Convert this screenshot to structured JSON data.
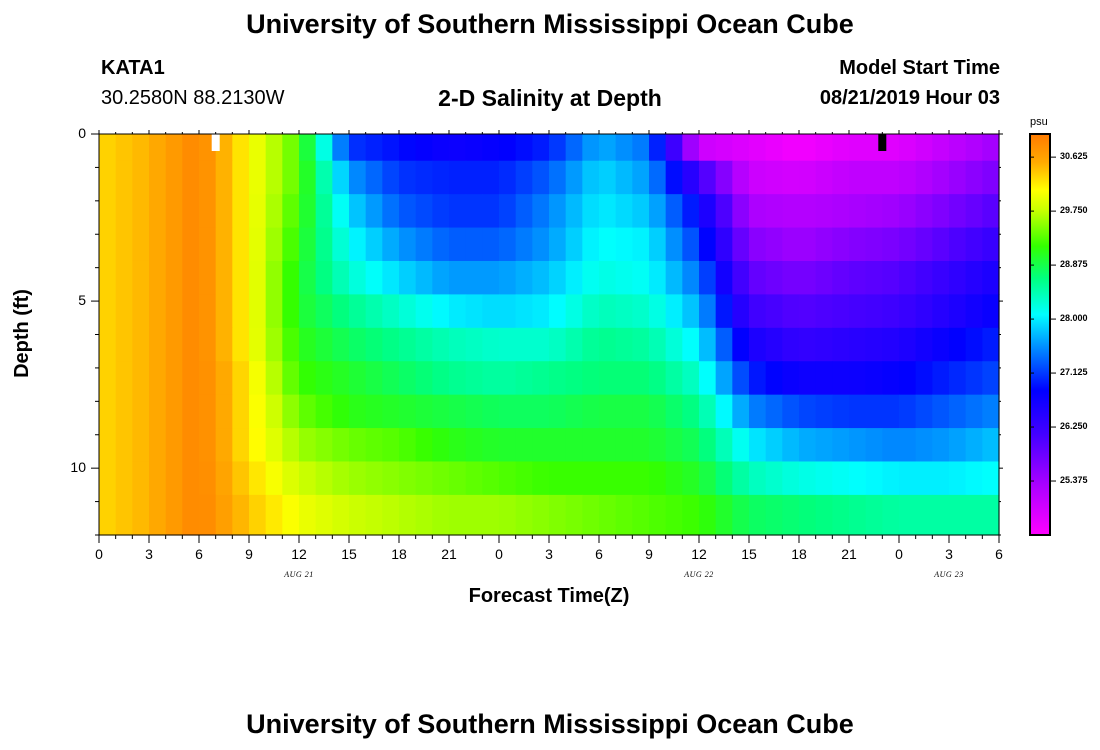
{
  "header": {
    "title": "University of Southern Mississippi Ocean Cube",
    "station": "KATA1",
    "coords": "30.2580N 88.2130W",
    "subtitle": "2-D Salinity at Depth",
    "model_label": "Model Start Time",
    "model_time": "08/21/2019 Hour 03"
  },
  "footer": {
    "title": "University of Southern Mississippi Ocean Cube"
  },
  "chart_data": {
    "type": "heatmap",
    "title": "2-D Salinity at Depth",
    "xlabel": "Forecast Time(Z)",
    "ylabel": "Depth (ft)",
    "x_tick_labels": [
      "0",
      "3",
      "6",
      "9",
      "12",
      "15",
      "18",
      "21",
      "0",
      "3",
      "6",
      "9",
      "12",
      "15",
      "18",
      "21",
      "0",
      "3",
      "6"
    ],
    "x_range_hours": [
      0,
      54
    ],
    "y_tick_labels": [
      "0",
      "5",
      "10"
    ],
    "y_tick_values": [
      0,
      5,
      10
    ],
    "y_range_ft": [
      0,
      12
    ],
    "date_labels": [
      {
        "text": "AUG 21",
        "hour": 12
      },
      {
        "text": "AUG 22",
        "hour": 36
      },
      {
        "text": "AUG 23",
        "hour": 51
      }
    ],
    "colorbar": {
      "unit": "psu",
      "min": 24.5,
      "max": 31.0,
      "labels": [
        "30.625",
        "29.750",
        "28.875",
        "28.000",
        "27.125",
        "26.250",
        "25.375"
      ],
      "label_values": [
        30.625,
        29.75,
        28.875,
        28.0,
        27.125,
        26.25,
        25.375
      ]
    },
    "markers": [
      {
        "hour": 7,
        "color": "#ffffff"
      },
      {
        "hour": 47,
        "color": "#000000"
      }
    ],
    "depth_levels_ft": [
      0.3,
      1.3,
      2.3,
      3.3,
      4.3,
      5.3,
      6.3,
      7.3,
      8.3,
      9.3,
      10.3,
      11.3
    ],
    "time_hours": [
      0,
      3,
      6,
      9,
      12,
      15,
      18,
      21,
      24,
      27,
      30,
      33,
      36,
      39,
      42,
      45,
      48,
      51,
      54
    ],
    "salinity": [
      [
        30.3,
        30.5,
        30.9,
        30.1,
        29.3,
        27.1,
        26.9,
        26.7,
        26.8,
        27.0,
        27.7,
        27.4,
        25.0,
        24.8,
        24.6,
        24.8,
        24.8,
        25.1,
        25.4
      ],
      [
        30.3,
        30.5,
        30.9,
        30.1,
        29.3,
        27.6,
        27.1,
        27.0,
        27.0,
        27.3,
        27.9,
        27.6,
        26.2,
        25.0,
        24.9,
        25.1,
        25.1,
        25.4,
        25.7
      ],
      [
        30.3,
        30.5,
        30.9,
        30.1,
        29.2,
        27.9,
        27.3,
        27.1,
        27.1,
        27.5,
        28.0,
        27.8,
        26.8,
        25.3,
        25.2,
        25.3,
        25.4,
        25.7,
        26.0
      ],
      [
        30.3,
        30.5,
        30.9,
        30.1,
        29.1,
        28.1,
        27.6,
        27.3,
        27.3,
        27.6,
        28.1,
        28.0,
        27.1,
        25.6,
        25.4,
        25.6,
        25.7,
        26.0,
        26.3
      ],
      [
        30.3,
        30.5,
        30.9,
        30.1,
        29.0,
        28.3,
        27.9,
        27.6,
        27.6,
        27.8,
        28.2,
        28.1,
        27.4,
        25.9,
        25.7,
        25.9,
        26.0,
        26.3,
        26.6
      ],
      [
        30.3,
        30.5,
        30.9,
        30.1,
        29.0,
        28.6,
        28.3,
        28.0,
        27.9,
        28.0,
        28.4,
        28.3,
        27.7,
        26.2,
        26.0,
        26.1,
        26.2,
        26.5,
        26.8
      ],
      [
        30.3,
        30.5,
        30.9,
        30.1,
        29.1,
        28.8,
        28.6,
        28.4,
        28.3,
        28.3,
        28.6,
        28.5,
        28.0,
        26.6,
        26.3,
        26.4,
        26.5,
        26.8,
        27.0
      ],
      [
        30.3,
        30.5,
        30.9,
        30.2,
        29.2,
        29.0,
        28.8,
        28.6,
        28.5,
        28.6,
        28.7,
        28.7,
        28.3,
        27.0,
        26.7,
        26.7,
        26.8,
        27.0,
        27.2
      ],
      [
        30.3,
        30.5,
        30.9,
        30.2,
        29.4,
        29.1,
        29.0,
        28.9,
        28.8,
        28.8,
        28.9,
        28.9,
        28.6,
        27.5,
        27.2,
        27.1,
        27.1,
        27.3,
        27.5
      ],
      [
        30.3,
        30.5,
        30.9,
        30.2,
        29.6,
        29.4,
        29.3,
        29.1,
        29.0,
        29.0,
        29.0,
        29.0,
        28.8,
        28.0,
        27.7,
        27.6,
        27.5,
        27.6,
        27.8
      ],
      [
        30.3,
        30.5,
        30.9,
        30.3,
        29.8,
        29.6,
        29.5,
        29.4,
        29.3,
        29.2,
        29.2,
        29.2,
        29.0,
        28.4,
        28.2,
        28.1,
        28.0,
        28.0,
        28.1
      ],
      [
        30.3,
        30.5,
        30.9,
        30.4,
        30.0,
        29.8,
        29.7,
        29.6,
        29.6,
        29.5,
        29.4,
        29.3,
        29.2,
        28.8,
        28.7,
        28.6,
        28.5,
        28.5,
        28.5
      ]
    ]
  }
}
